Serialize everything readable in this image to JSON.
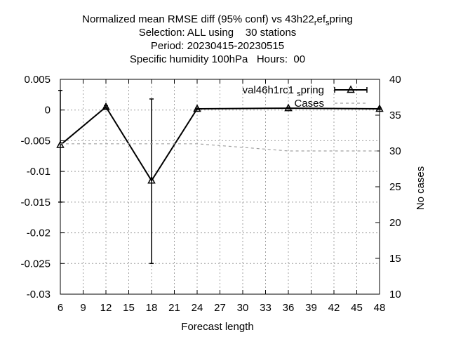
{
  "chart_data": {
    "type": "line",
    "title_lines": [
      "Normalized mean RMSE diff (95% conf) vs 43h22_ref_spring",
      "Selection: ALL using    30 stations",
      "Period: 20230415-20230515",
      "Specific humidity 100hPa   Hours:  00"
    ],
    "xlabel": "Forecast length",
    "ylabel": "",
    "y2label": "No cases",
    "xlim": [
      6,
      48
    ],
    "ylim": [
      -0.03,
      0.005
    ],
    "y2lim": [
      10,
      40
    ],
    "grid": true,
    "legend_position": "top-right",
    "x_ticks": [
      6,
      9,
      12,
      15,
      18,
      21,
      24,
      27,
      30,
      33,
      36,
      39,
      42,
      45,
      48
    ],
    "y_ticks": [
      "0.005",
      "0",
      "-0.005",
      "-0.01",
      "-0.015",
      "-0.02",
      "-0.025",
      "-0.03"
    ],
    "y2_ticks": [
      "40",
      "35",
      "30",
      "25",
      "20",
      "15",
      "10"
    ],
    "series": [
      {
        "name": "val46h1rc1_spring",
        "legend_main": "val46h1rc1",
        "legend_sub": "s",
        "legend_tail": "pring",
        "axis": "y",
        "style": "line-errorbars-triangles",
        "color": "#000000",
        "x": [
          6,
          12,
          18,
          24,
          36,
          48
        ],
        "y": [
          -0.0057,
          0.0005,
          -0.0115,
          0.0002,
          0.0003,
          0.0002
        ],
        "err_low": [
          -0.015,
          0.0003,
          -0.025,
          0.0001,
          0.0002,
          0.0001
        ],
        "err_high": [
          0.0032,
          0.0007,
          0.0018,
          0.0003,
          0.0004,
          0.0003
        ]
      },
      {
        "name": "Cases",
        "axis": "y2",
        "style": "dashed",
        "color": "#a0a0a0",
        "x": [
          6,
          12,
          18,
          24,
          30,
          36,
          42,
          48
        ],
        "y": [
          31,
          31,
          31,
          31,
          30.5,
          30,
          30,
          30
        ]
      }
    ]
  }
}
